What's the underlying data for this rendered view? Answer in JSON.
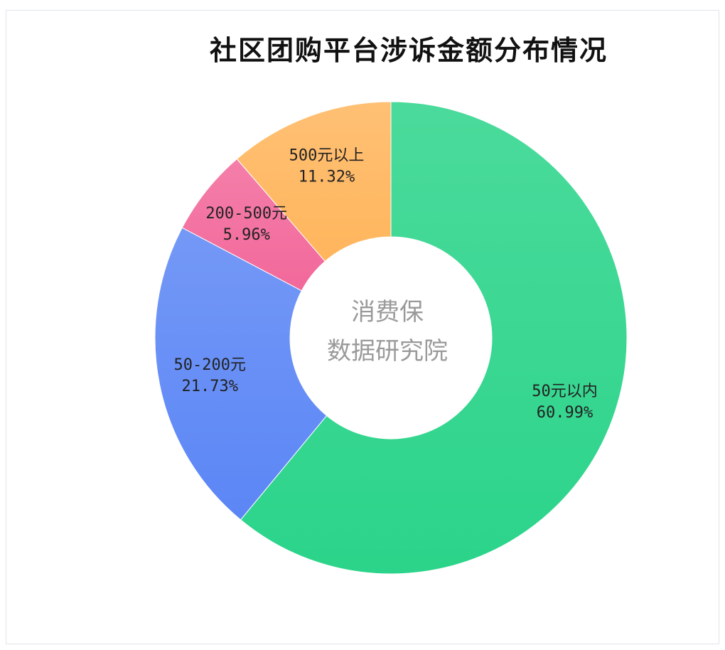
{
  "chart_data": {
    "type": "pie",
    "title": "社区团购平台涉诉金额分布情况",
    "center_text": [
      "消费保",
      "数据研究院"
    ],
    "slices": [
      {
        "label": "50元以内",
        "value": 60.99,
        "display": "60.99%",
        "color": "#2bd48a"
      },
      {
        "label": "50-200元",
        "value": 21.73,
        "display": "21.73%",
        "color": "#5b86f5"
      },
      {
        "label": "200-500元",
        "value": 5.96,
        "display": "5.96%",
        "color": "#f2689a"
      },
      {
        "label": "500元以上",
        "value": 11.32,
        "display": "11.32%",
        "color": "#ffb55c"
      }
    ]
  }
}
